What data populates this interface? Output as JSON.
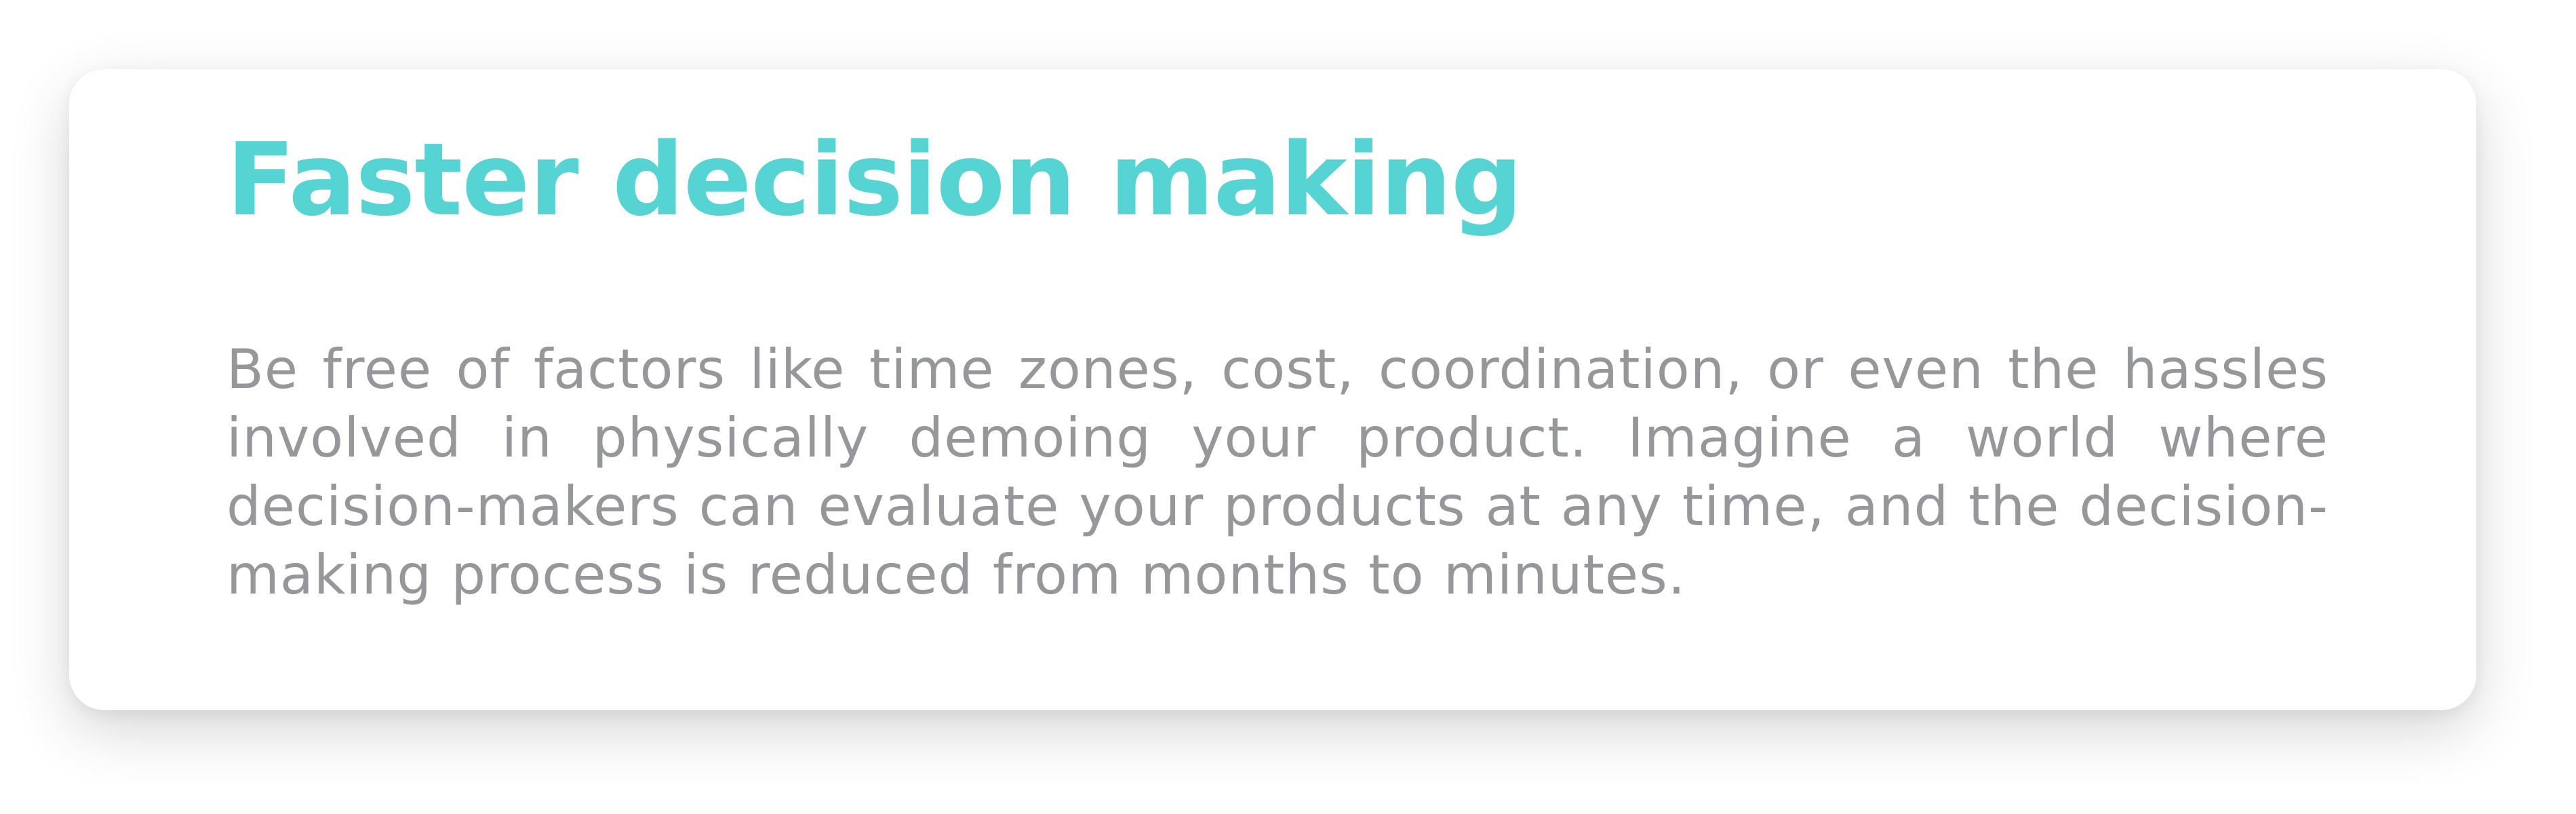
{
  "card": {
    "title": "Faster decision making",
    "body": "Be free of factors like time zones, cost, coordination, or even the hassles involved in physically demoing your product. Imagine a world where decision-makers can evaluate your products at any time, and the decision-making process is reduced from months to minutes."
  },
  "colors": {
    "title": "#56d3d3",
    "body": "#96979b",
    "card_background": "#ffffff"
  }
}
